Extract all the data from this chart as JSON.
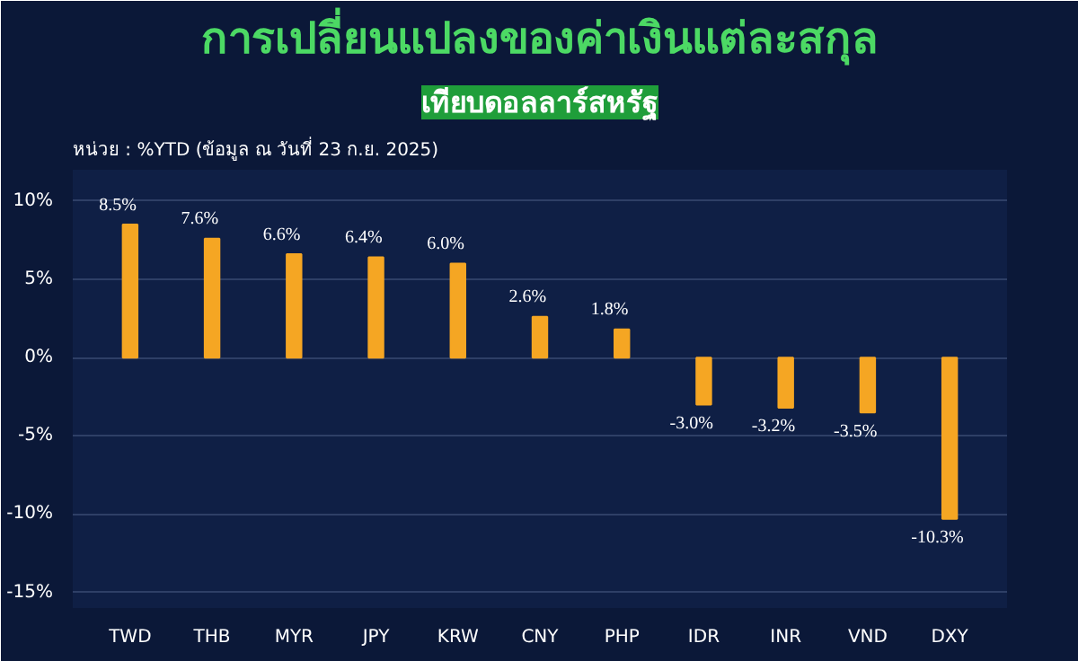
{
  "chart_data": {
    "type": "bar",
    "title": "การเปลี่ยนแปลงของค่าเงินแต่ละสกุล",
    "subtitle": "เทียบดอลลาร์สหรัฐ",
    "annotations": [
      "หน่วย : %YTD (ข้อมูล ณ วันที่ 23 ก.ย. 2025)"
    ],
    "categories": [
      "TWD",
      "THB",
      "MYR",
      "JPY",
      "KRW",
      "CNY",
      "PHP",
      "IDR",
      "INR",
      "VND",
      "DXY"
    ],
    "values": [
      8.5,
      7.6,
      6.6,
      6.4,
      6.0,
      2.6,
      1.8,
      -3.0,
      -3.2,
      -3.5,
      -10.3
    ],
    "value_labels": [
      "8.5%",
      "7.6%",
      "6.6%",
      "6.4%",
      "6.0%",
      "2.6%",
      "1.8%",
      "-3.0%",
      "-3.2%",
      "-3.5%",
      "-10.3%"
    ],
    "color": "#f5a623",
    "ylim": [
      -16,
      12
    ],
    "yticks": [
      {
        "value": 10,
        "label": "10%"
      },
      {
        "value": 5,
        "label": "5%"
      },
      {
        "value": 0,
        "label": "0%"
      },
      {
        "value": -5,
        "label": "-5%"
      },
      {
        "value": -10,
        "label": "-10%"
      },
      {
        "value": -15,
        "label": "-15%"
      }
    ],
    "grid": "y"
  }
}
